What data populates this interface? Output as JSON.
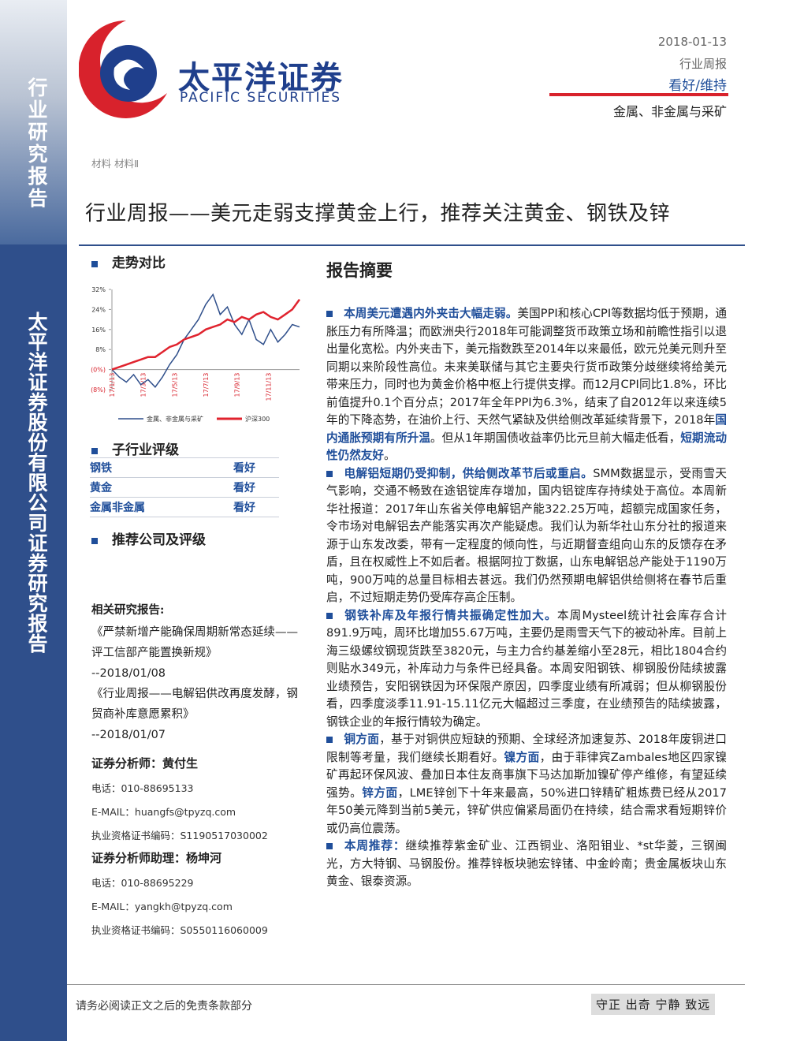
{
  "sidebar": {
    "top": "行业研究报告",
    "bottom": "太平洋证券股份有限公司证券研究报告"
  },
  "header": {
    "brand_cn": "太平洋证券",
    "brand_en": "PACIFIC SECURITIES",
    "date": "2018-01-13",
    "report_type": "行业周报",
    "rating": "看好/维持",
    "industry": "金属、非金属与采矿",
    "category": "材料 材料Ⅱ"
  },
  "title": "行业周报——美元走弱支撑黄金上行，推荐关注黄金、钢铁及锌",
  "trend": {
    "heading": "走势对比",
    "chart_data": {
      "type": "line",
      "xticks": [
        "17/1/13",
        "17/3/13",
        "17/5/13",
        "17/7/13",
        "17/9/13",
        "17/11/13"
      ],
      "ylim": [
        -8,
        32
      ],
      "yticks": [
        {
          "value": 32,
          "label": "32%"
        },
        {
          "value": 24,
          "label": "24%"
        },
        {
          "value": 16,
          "label": "16%"
        },
        {
          "value": 8,
          "label": "8%"
        },
        {
          "value": 0,
          "label": "(0%)"
        },
        {
          "value": -8,
          "label": "(8%)"
        }
      ],
      "series": [
        {
          "name": "金属、非金属与采矿",
          "color": "#2f4f8b",
          "values": [
            0,
            -3,
            -5,
            -2,
            -6,
            -4,
            -7,
            -3,
            2,
            6,
            12,
            16,
            20,
            26,
            30,
            22,
            25,
            18,
            14,
            20,
            12,
            10,
            16,
            11,
            14,
            18,
            17
          ]
        },
        {
          "name": "沪深300",
          "color": "#e0232e",
          "values": [
            0,
            1,
            2,
            3,
            4,
            5,
            5,
            7,
            9,
            10,
            12,
            13,
            14,
            16,
            17,
            18,
            20,
            19,
            21,
            20,
            22,
            23,
            21,
            20,
            22,
            24,
            28
          ]
        }
      ]
    }
  },
  "sub_ratings": {
    "heading": "子行业评级",
    "rows": [
      [
        "钢铁",
        "看好"
      ],
      [
        "黄金",
        "看好"
      ],
      [
        "金属非金属",
        "看好"
      ]
    ]
  },
  "recommend": {
    "heading": "推荐公司及评级"
  },
  "related": {
    "heading": "相关研究报告:",
    "items": [
      {
        "title": "《严禁新增产能确保周期新常态延续——评工信部产能置换新规》",
        "date": "--2018/01/08"
      },
      {
        "title": "《行业周报——电解铝供改再度发酵，钢贸商补库意愿累积》",
        "date": "--2018/01/07"
      }
    ]
  },
  "analysts": [
    {
      "role": "证券分析师：黄付生",
      "phone": "电话：010-88695133",
      "email": "E-MAIL：huangfs@tpyzq.com",
      "cert": "执业资格证书编码：S1190517030002"
    },
    {
      "role": "证券分析师助理：杨坤河",
      "phone": "电话：010-88695229",
      "email": "E-MAIL：yangkh@tpyzq.com",
      "cert": "执业资格证书编码：S0550116060009"
    }
  ],
  "summary": {
    "heading": "报告摘要",
    "paragraphs": [
      [
        {
          "strong": "本周美元遭遇内外夹击大幅走弱。"
        },
        {
          "text": "美国PPI和核心CPI等数据均低于预期，通胀压力有所降温；而欧洲央行2018年可能调整货币政策立场和前瞻性指引以退出量化宽松。内外夹击下，美元指数跌至2014年以来最低，欧元兑美元则升至同期以来阶段性高位。未来美联储与其它主要央行货币政策分歧继续将给美元带来压力，同时也为黄金价格中枢上行提供支撑。而12月CPI同比1.8%，环比前值提升0.1个百分点；2017年全年PPI为6.3%，结束了自2012年以来连续5年的下降态势，在油价上行、天然气紧缺及供给侧改革延续背景下，2018年"
        },
        {
          "strong": "国内通胀预期有所升温"
        },
        {
          "text": "。但从1年期国债收益率仍比元旦前大幅走低看，"
        },
        {
          "strong": "短期流动性仍然友好"
        },
        {
          "text": "。"
        }
      ],
      [
        {
          "strong": "电解铝短期仍受抑制，供给侧改革节后或重启。"
        },
        {
          "text": "SMM数据显示，受雨雪天气影响，交通不畅致在途铝锭库存增加，国内铝锭库存持续处于高位。本周新华社报道：2017年山东省关停电解铝产能322.25万吨，超额完成国家任务，令市场对电解铝去产能落实再次产能疑虑。我们认为新华社山东分社的报道来源于山东发改委，带有一定程度的倾向性，与近期督查组向山东的反馈存在矛盾，且在权威性上不如后者。根据阿拉丁数据，山东电解铝总产能处于1190万吨，900万吨的总量目标相去甚远。我们仍然预期电解铝供给侧将在春节后重启，不过短期走势仍受库存高企压制。"
        }
      ],
      [
        {
          "strong": "钢铁补库及年报行情共振确定性加大。"
        },
        {
          "text": "本周Mysteel统计社会库存合计891.9万吨，周环比增加55.67万吨，主要仍是雨雪天气下的被动补库。目前上海三级螺纹钢现货跌至3820元，与主力合约基差缩小至28元，相比1804合约则贴水349元，补库动力与条件已经具备。本周安阳钢铁、柳钢股份陆续披露业绩预告，安阳钢铁因为环保限产原因，四季度业绩有所减弱；但从柳钢股份看，四季度淡季11.91-15.11亿元大幅超过三季度，在业绩预告的陆续披露，钢铁企业的年报行情较为确定。"
        }
      ],
      [
        {
          "strong": "铜方面"
        },
        {
          "text": "，基于对铜供应短缺的预期、全球经济加速复苏、2018年废铜进口限制等考量，我们继续长期看好。"
        },
        {
          "strong": "镍方面"
        },
        {
          "text": "，由于菲律宾Zambales地区四家镍矿再起环保风波、叠加日本住友商事旗下马达加斯加镍矿停产维修，有望延续强势。"
        },
        {
          "strong": "锌方面"
        },
        {
          "text": "，LME锌创下十年来最高，50%进口锌精矿粗炼费已经从2017年50美元降到当前5美元，锌矿供应偏紧局面仍在持续，结合需求看短期锌价或仍高位震荡。"
        }
      ],
      [
        {
          "strong": "本周推荐："
        },
        {
          "text": "继续推荐紫金矿业、江西铜业、洛阳钼业、*st华菱，三钢闽光，方大特钢、马钢股份。推荐锌板块驰宏锌锗、中金岭南；贵金属板块山东黄金、银泰资源。"
        }
      ]
    ]
  },
  "footer": {
    "disclaimer": "请务必阅读正文之后的免责条款部分",
    "motto": "守正 出奇 宁静 致远"
  }
}
